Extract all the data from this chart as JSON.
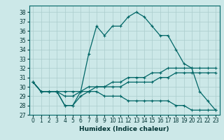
{
  "title": "",
  "xlabel": "Humidex (Indice chaleur)",
  "ylabel": "",
  "bg_color": "#cce8e8",
  "grid_color": "#aacccc",
  "line_color": "#006666",
  "xlim": [
    -0.5,
    23.5
  ],
  "ylim": [
    27,
    38.7
  ],
  "yticks": [
    27,
    28,
    29,
    30,
    31,
    32,
    33,
    34,
    35,
    36,
    37,
    38
  ],
  "xticks": [
    0,
    1,
    2,
    3,
    4,
    5,
    6,
    7,
    8,
    9,
    10,
    11,
    12,
    13,
    14,
    15,
    16,
    17,
    18,
    19,
    20,
    21,
    22,
    23
  ],
  "xtick_labels": [
    "0",
    "1",
    "2",
    "3",
    "4",
    "5",
    "6",
    "7",
    "8",
    "9",
    "10",
    "11",
    "12",
    "13",
    "14",
    "15",
    "16",
    "17",
    "18",
    "19",
    "20",
    "21",
    "22",
    "23"
  ],
  "series": [
    [
      30.5,
      29.5,
      29.5,
      29.5,
      28.0,
      28.0,
      29.5,
      33.5,
      36.5,
      35.5,
      36.5,
      36.5,
      37.5,
      38.0,
      37.5,
      36.5,
      35.5,
      35.5,
      34.0,
      32.5,
      32.0,
      29.5,
      28.5,
      27.5
    ],
    [
      30.5,
      29.5,
      29.5,
      29.5,
      29.5,
      29.5,
      29.5,
      29.5,
      30.0,
      30.0,
      30.5,
      30.5,
      31.0,
      31.0,
      31.0,
      31.5,
      31.5,
      32.0,
      32.0,
      32.0,
      32.0,
      32.0,
      32.0,
      32.0
    ],
    [
      30.5,
      29.5,
      29.5,
      29.5,
      29.0,
      29.0,
      29.5,
      30.0,
      30.0,
      30.0,
      30.0,
      30.0,
      30.5,
      30.5,
      30.5,
      30.5,
      31.0,
      31.0,
      31.5,
      31.5,
      31.5,
      31.5,
      31.5,
      31.5
    ],
    [
      30.5,
      29.5,
      29.5,
      29.5,
      28.0,
      28.0,
      29.0,
      29.5,
      29.5,
      29.0,
      29.0,
      29.0,
      28.5,
      28.5,
      28.5,
      28.5,
      28.5,
      28.5,
      28.0,
      28.0,
      27.5,
      27.5,
      27.5,
      27.5
    ]
  ],
  "tick_fontsize": 5.5,
  "xlabel_fontsize": 6.5,
  "marker": "+",
  "marker_size": 2.5,
  "linewidth": 0.9
}
